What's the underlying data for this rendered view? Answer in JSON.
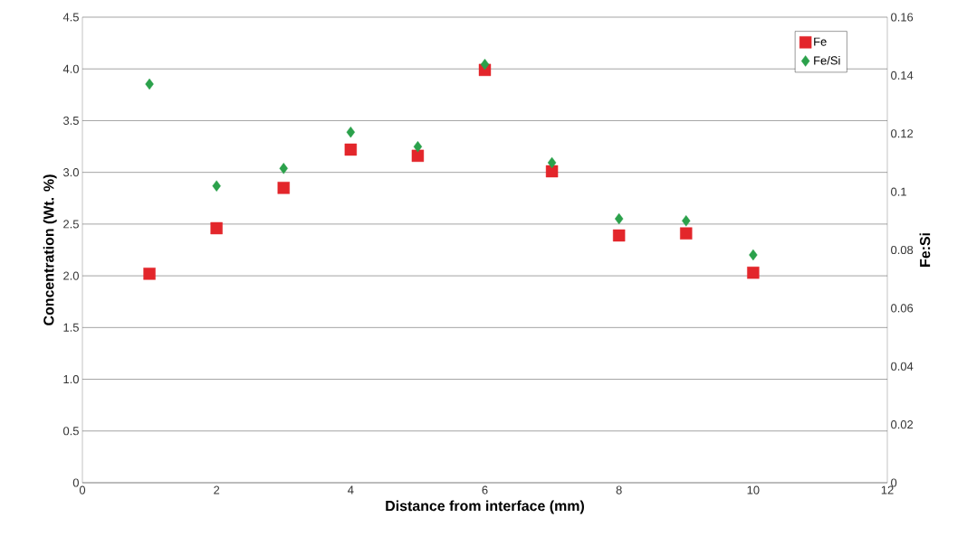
{
  "chart_data": {
    "type": "scatter",
    "xlabel": "Distance from interface (mm)",
    "ylabel": "Concentration (Wt. %)",
    "y2label": "Fe:Si",
    "x": [
      1,
      2,
      3,
      4,
      5,
      6,
      7,
      8,
      9,
      10
    ],
    "series": [
      {
        "name": "Fe",
        "color": "#e3262b",
        "marker": "square",
        "values": [
          2.02,
          2.46,
          2.85,
          3.22,
          3.16,
          3.99,
          3.01,
          2.39,
          2.41,
          2.03
        ]
      },
      {
        "name": "Fe/Si",
        "color": "#2ba14b",
        "marker": "diamond",
        "axis": "y2",
        "values": [
          0.137,
          0.102,
          0.108,
          0.1205,
          0.1155,
          0.1438,
          0.11,
          0.0907,
          0.09,
          0.0783
        ]
      }
    ],
    "xlim": [
      0,
      12
    ],
    "xticks": [
      0,
      2,
      4,
      6,
      8,
      10,
      12
    ],
    "ylim": [
      0,
      4.5
    ],
    "yticks": [
      0,
      0.5,
      {
        "value": 1,
        "label": "1.0"
      },
      1.5,
      {
        "value": 2,
        "label": "2.0"
      },
      2.5,
      {
        "value": 3,
        "label": "3.0"
      },
      3.5,
      {
        "value": 4,
        "label": "4.0"
      },
      4.5
    ],
    "y2lim": [
      0,
      0.16
    ],
    "y2ticks": [
      0,
      0.02,
      0.04,
      0.06,
      0.08,
      0.1,
      0.12,
      0.14,
      0.16
    ],
    "grid": "y",
    "legend": "top right"
  }
}
